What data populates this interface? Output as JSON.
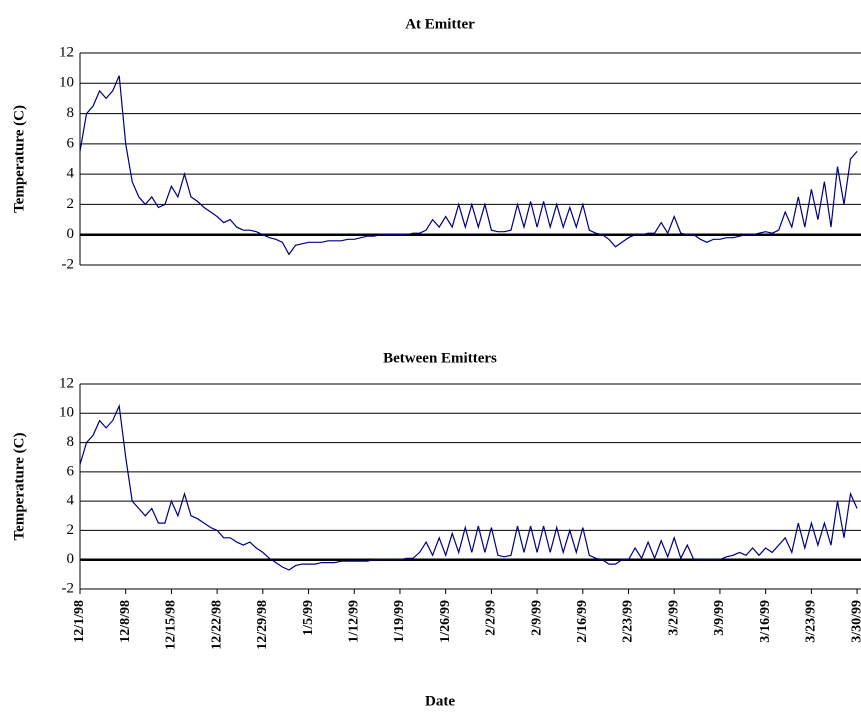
{
  "chart_data": [
    {
      "type": "line",
      "title": "At Emitter",
      "y_label": "Temperature (C)",
      "ylim": [
        -2,
        12
      ],
      "yticks": [
        -2,
        0,
        2,
        4,
        6,
        8,
        10,
        12
      ],
      "grid": true,
      "x": [
        "12/1/98",
        "12/2/98",
        "12/3/98",
        "12/4/98",
        "12/5/98",
        "12/6/98",
        "12/7/98",
        "12/8/98",
        "12/9/98",
        "12/10/98",
        "12/11/98",
        "12/12/98",
        "12/13/98",
        "12/14/98",
        "12/15/98",
        "12/16/98",
        "12/17/98",
        "12/18/98",
        "12/19/98",
        "12/20/98",
        "12/21/98",
        "12/22/98",
        "12/23/98",
        "12/24/98",
        "12/25/98",
        "12/26/98",
        "12/27/98",
        "12/28/98",
        "12/29/98",
        "12/30/98",
        "12/31/98",
        "1/1/99",
        "1/2/99",
        "1/3/99",
        "1/4/99",
        "1/5/99",
        "1/6/99",
        "1/7/99",
        "1/8/99",
        "1/9/99",
        "1/10/99",
        "1/11/99",
        "1/12/99",
        "1/13/99",
        "1/14/99",
        "1/15/99",
        "1/16/99",
        "1/17/99",
        "1/18/99",
        "1/19/99",
        "1/20/99",
        "1/21/99",
        "1/22/99",
        "1/23/99",
        "1/24/99",
        "1/25/99",
        "1/26/99",
        "1/27/99",
        "1/28/99",
        "1/29/99",
        "1/30/99",
        "1/31/99",
        "2/1/99",
        "2/2/99",
        "2/3/99",
        "2/4/99",
        "2/5/99",
        "2/6/99",
        "2/7/99",
        "2/8/99",
        "2/9/99",
        "2/10/99",
        "2/11/99",
        "2/12/99",
        "2/13/99",
        "2/14/99",
        "2/15/99",
        "2/16/99",
        "2/17/99",
        "2/18/99",
        "2/19/99",
        "2/20/99",
        "2/21/99",
        "2/22/99",
        "2/23/99",
        "2/24/99",
        "2/25/99",
        "2/26/99",
        "2/27/99",
        "2/28/99",
        "3/1/99",
        "3/2/99",
        "3/3/99",
        "3/4/99",
        "3/5/99",
        "3/6/99",
        "3/7/99",
        "3/8/99",
        "3/9/99",
        "3/10/99",
        "3/11/99",
        "3/12/99",
        "3/13/99",
        "3/14/99",
        "3/15/99",
        "3/16/99",
        "3/17/99",
        "3/18/99",
        "3/19/99",
        "3/20/99",
        "3/21/99",
        "3/22/99",
        "3/23/99",
        "3/24/99",
        "3/25/99",
        "3/26/99",
        "3/27/99",
        "3/28/99",
        "3/29/99",
        "3/30/99"
      ],
      "series": [
        {
          "color": "#000080",
          "values": [
            5.5,
            8,
            8.5,
            9.5,
            9,
            9.5,
            10.5,
            6,
            3.5,
            2.5,
            2,
            2.5,
            1.8,
            2,
            3.2,
            2.5,
            4,
            2.5,
            2.2,
            1.8,
            1.5,
            1.2,
            0.8,
            1,
            0.5,
            0.3,
            0.3,
            0.2,
            0,
            -0.2,
            -0.3,
            -0.5,
            -1.3,
            -0.7,
            -0.6,
            -0.5,
            -0.5,
            -0.5,
            -0.4,
            -0.4,
            -0.4,
            -0.3,
            -0.3,
            -0.2,
            -0.1,
            -0.1,
            0,
            0,
            0,
            0,
            0,
            0.1,
            0.1,
            0.3,
            1,
            0.5,
            1.2,
            0.5,
            2,
            0.5,
            2,
            0.5,
            2,
            0.3,
            0.2,
            0.2,
            0.3,
            2,
            0.5,
            2.2,
            0.5,
            2.2,
            0.5,
            2,
            0.5,
            1.8,
            0.5,
            2,
            0.3,
            0.1,
            0,
            -0.3,
            -0.8,
            -0.5,
            -0.2,
            0,
            0,
            0.1,
            0.1,
            0.8,
            0.1,
            1.2,
            0.1,
            0,
            0,
            -0.3,
            -0.5,
            -0.3,
            -0.3,
            -0.2,
            -0.2,
            -0.1,
            0,
            0,
            0.1,
            0.2,
            0.1,
            0.3,
            1.5,
            0.5,
            2.5,
            0.5,
            3,
            1,
            3.5,
            0.5,
            4.5,
            2,
            5,
            5.5
          ]
        }
      ]
    },
    {
      "type": "line",
      "title": "Between Emitters",
      "y_label": "Temperature (C)",
      "x_label": "Date",
      "ylim": [
        -2,
        12
      ],
      "yticks": [
        -2,
        0,
        2,
        4,
        6,
        8,
        10,
        12
      ],
      "grid": true,
      "x": [
        "12/1/98",
        "12/2/98",
        "12/3/98",
        "12/4/98",
        "12/5/98",
        "12/6/98",
        "12/7/98",
        "12/8/98",
        "12/9/98",
        "12/10/98",
        "12/11/98",
        "12/12/98",
        "12/13/98",
        "12/14/98",
        "12/15/98",
        "12/16/98",
        "12/17/98",
        "12/18/98",
        "12/19/98",
        "12/20/98",
        "12/21/98",
        "12/22/98",
        "12/23/98",
        "12/24/98",
        "12/25/98",
        "12/26/98",
        "12/27/98",
        "12/28/98",
        "12/29/98",
        "12/30/98",
        "12/31/98",
        "1/1/99",
        "1/2/99",
        "1/3/99",
        "1/4/99",
        "1/5/99",
        "1/6/99",
        "1/7/99",
        "1/8/99",
        "1/9/99",
        "1/10/99",
        "1/11/99",
        "1/12/99",
        "1/13/99",
        "1/14/99",
        "1/15/99",
        "1/16/99",
        "1/17/99",
        "1/18/99",
        "1/19/99",
        "1/20/99",
        "1/21/99",
        "1/22/99",
        "1/23/99",
        "1/24/99",
        "1/25/99",
        "1/26/99",
        "1/27/99",
        "1/28/99",
        "1/29/99",
        "1/30/99",
        "1/31/99",
        "2/1/99",
        "2/2/99",
        "2/3/99",
        "2/4/99",
        "2/5/99",
        "2/6/99",
        "2/7/99",
        "2/8/99",
        "2/9/99",
        "2/10/99",
        "2/11/99",
        "2/12/99",
        "2/13/99",
        "2/14/99",
        "2/15/99",
        "2/16/99",
        "2/17/99",
        "2/18/99",
        "2/19/99",
        "2/20/99",
        "2/21/99",
        "2/22/99",
        "2/23/99",
        "2/24/99",
        "2/25/99",
        "2/26/99",
        "2/27/99",
        "2/28/99",
        "3/1/99",
        "3/2/99",
        "3/3/99",
        "3/4/99",
        "3/5/99",
        "3/6/99",
        "3/7/99",
        "3/8/99",
        "3/9/99",
        "3/10/99",
        "3/11/99",
        "3/12/99",
        "3/13/99",
        "3/14/99",
        "3/15/99",
        "3/16/99",
        "3/17/99",
        "3/18/99",
        "3/19/99",
        "3/20/99",
        "3/21/99",
        "3/22/99",
        "3/23/99",
        "3/24/99",
        "3/25/99",
        "3/26/99",
        "3/27/99",
        "3/28/99",
        "3/29/99",
        "3/30/99"
      ],
      "xticks": [
        "12/1/98",
        "12/8/98",
        "12/15/98",
        "12/22/98",
        "12/29/98",
        "1/5/99",
        "1/12/99",
        "1/19/99",
        "1/26/99",
        "2/2/99",
        "2/9/99",
        "2/16/99",
        "2/23/99",
        "3/2/99",
        "3/9/99",
        "3/16/99",
        "3/23/99",
        "3/30/99"
      ],
      "series": [
        {
          "color": "#000080",
          "values": [
            6.5,
            8,
            8.5,
            9.5,
            9,
            9.5,
            10.5,
            7,
            4,
            3.5,
            3,
            3.5,
            2.5,
            2.5,
            4,
            3,
            4.5,
            3,
            2.8,
            2.5,
            2.2,
            2,
            1.5,
            1.5,
            1.2,
            1,
            1.2,
            0.8,
            0.5,
            0.1,
            -0.2,
            -0.5,
            -0.7,
            -0.4,
            -0.3,
            -0.3,
            -0.3,
            -0.2,
            -0.2,
            -0.2,
            -0.1,
            -0.1,
            -0.1,
            -0.1,
            -0.1,
            0,
            0,
            0,
            0,
            0,
            0.1,
            0.1,
            0.5,
            1.2,
            0.3,
            1.5,
            0.3,
            1.8,
            0.5,
            2.2,
            0.5,
            2.3,
            0.5,
            2.2,
            0.3,
            0.2,
            0.3,
            2.3,
            0.5,
            2.3,
            0.5,
            2.3,
            0.5,
            2.2,
            0.5,
            2,
            0.5,
            2.2,
            0.3,
            0.1,
            0,
            -0.3,
            -0.3,
            0,
            0,
            0.8,
            0.1,
            1.2,
            0.1,
            1.3,
            0.2,
            1.5,
            0.1,
            1,
            0,
            0,
            0,
            0,
            0,
            0.2,
            0.3,
            0.5,
            0.3,
            0.8,
            0.3,
            0.8,
            0.5,
            1,
            1.5,
            0.5,
            2.5,
            0.8,
            2.5,
            1,
            2.5,
            1,
            4,
            1.5,
            4.5,
            3.5
          ]
        }
      ]
    }
  ]
}
